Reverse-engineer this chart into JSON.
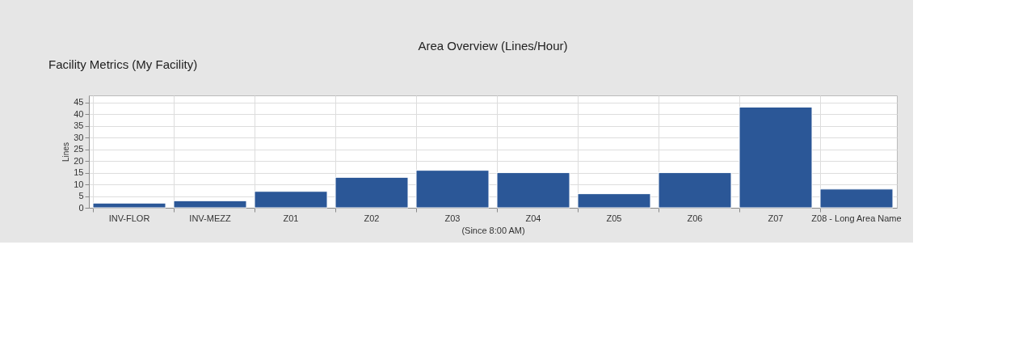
{
  "chart_data": {
    "type": "bar",
    "title": "Area Overview (Lines/Hour)",
    "annotations": [
      "Facility Metrics (My Facility)"
    ],
    "xlabel": "(Since 8:00 AM)",
    "ylabel": "Lines",
    "categories": [
      "INV-FLOR",
      "INV-MEZZ",
      "Z01",
      "Z02",
      "Z03",
      "Z04",
      "Z05",
      "Z06",
      "Z07",
      "Z08 - Long Area Name"
    ],
    "values": [
      2,
      3,
      7,
      13,
      16,
      15,
      6,
      15,
      43,
      8
    ],
    "color": "#2b5797",
    "ylim": [
      0,
      48
    ],
    "yticks": [
      0,
      5,
      10,
      15,
      20,
      25,
      30,
      35,
      40,
      45
    ],
    "grid": true
  }
}
